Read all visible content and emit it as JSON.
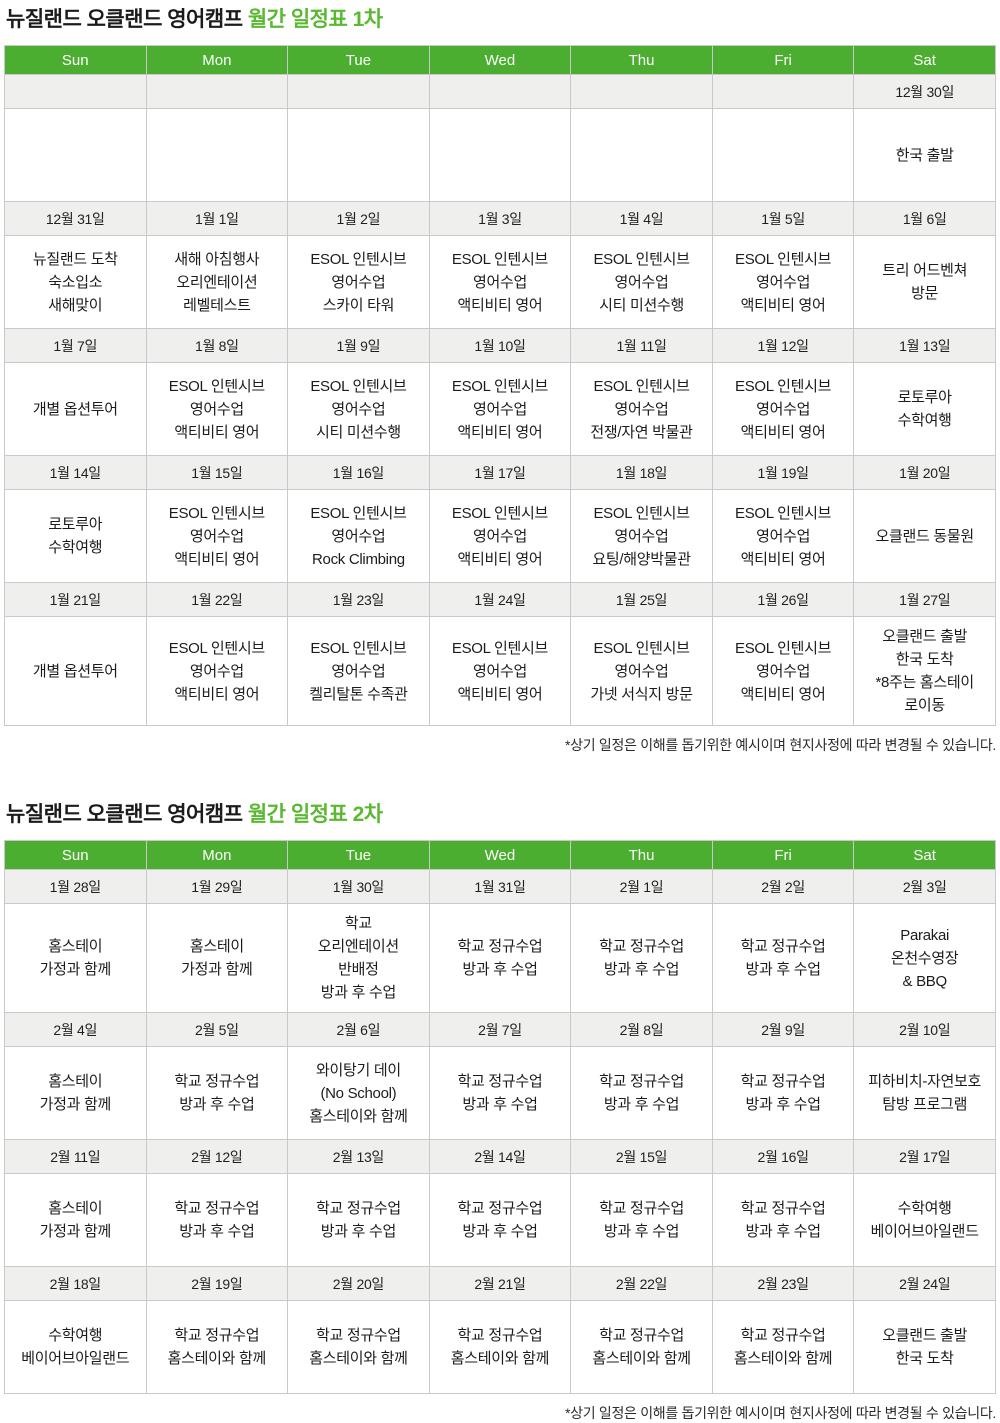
{
  "colors": {
    "header_green": "#4cae30",
    "title_highlight_green": "#5bb832",
    "date_row_bg": "#efefed",
    "border_gray": "#c9c9c9",
    "text_dark": "#1c1c1c"
  },
  "tables": [
    {
      "title_prefix": "뉴질랜드 오클랜드 영어캠프 ",
      "title_highlight": "월간 일정표 1차",
      "days": [
        "Sun",
        "Mon",
        "Tue",
        "Wed",
        "Thu",
        "Fri",
        "Sat"
      ],
      "rows": [
        {
          "type": "date",
          "cells": [
            "",
            "",
            "",
            "",
            "",
            "",
            "12월 30일"
          ]
        },
        {
          "type": "event",
          "cells": [
            "",
            "",
            "",
            "",
            "",
            "",
            "한국 출발"
          ]
        },
        {
          "type": "date",
          "cells": [
            "12월 31일",
            "1월 1일",
            "1월 2일",
            "1월 3일",
            "1월 4일",
            "1월 5일",
            "1월 6일"
          ]
        },
        {
          "type": "event",
          "cells": [
            "뉴질랜드 도착\n숙소입소\n새해맞이",
            "새해 아침행사\n오리엔테이션\n레벨테스트",
            "ESOL 인텐시브\n영어수업\n스카이 타워",
            "ESOL 인텐시브\n영어수업\n액티비티 영어",
            "ESOL 인텐시브\n영어수업\n시티 미션수행",
            "ESOL 인텐시브\n영어수업\n액티비티 영어",
            "트리 어드벤쳐\n방문"
          ]
        },
        {
          "type": "date",
          "cells": [
            "1월 7일",
            "1월 8일",
            "1월 9일",
            "1월 10일",
            "1월 11일",
            "1월 12일",
            "1월 13일"
          ]
        },
        {
          "type": "event",
          "cells": [
            "개별 옵션투어",
            "ESOL 인텐시브\n영어수업\n액티비티 영어",
            "ESOL 인텐시브\n영어수업\n시티 미션수행",
            "ESOL 인텐시브\n영어수업\n액티비티 영어",
            "ESOL 인텐시브\n영어수업\n전쟁/자연 박물관",
            "ESOL 인텐시브\n영어수업\n액티비티 영어",
            "로토루아\n수학여행"
          ]
        },
        {
          "type": "date",
          "cells": [
            "1월 14일",
            "1월 15일",
            "1월 16일",
            "1월 17일",
            "1월 18일",
            "1월 19일",
            "1월 20일"
          ]
        },
        {
          "type": "event",
          "cells": [
            "로토루아\n수학여행",
            "ESOL 인텐시브\n영어수업\n액티비티 영어",
            "ESOL 인텐시브\n영어수업\nRock Climbing",
            "ESOL 인텐시브\n영어수업\n액티비티 영어",
            "ESOL 인텐시브\n영어수업\n요팅/해양박물관",
            "ESOL 인텐시브\n영어수업\n액티비티 영어",
            "오클랜드 동물원"
          ]
        },
        {
          "type": "date",
          "cells": [
            "1월 21일",
            "1월 22일",
            "1월 23일",
            "1월 24일",
            "1월 25일",
            "1월 26일",
            "1월 27일"
          ]
        },
        {
          "type": "event",
          "cells": [
            "개별 옵션투어",
            "ESOL 인텐시브\n영어수업\n액티비티 영어",
            "ESOL 인텐시브\n영어수업\n켈리탈톤 수족관",
            "ESOL 인텐시브\n영어수업\n액티비티 영어",
            "ESOL 인텐시브\n영어수업\n가넷 서식지 방문",
            "ESOL 인텐시브\n영어수업\n액티비티 영어",
            "오클랜드 출발\n한국 도착\n*8주는 홈스테이\n로이동"
          ]
        }
      ],
      "footnote": "*상기 일정은 이해를 돕기위한 예시이며 현지사정에 따라 변경될 수 있습니다."
    },
    {
      "title_prefix": "뉴질랜드 오클랜드 영어캠프 ",
      "title_highlight": "월간 일정표 2차",
      "days": [
        "Sun",
        "Mon",
        "Tue",
        "Wed",
        "Thu",
        "Fri",
        "Sat"
      ],
      "rows": [
        {
          "type": "date",
          "cells": [
            "1월 28일",
            "1월 29일",
            "1월 30일",
            "1월 31일",
            "2월 1일",
            "2월 2일",
            "2월 3일"
          ]
        },
        {
          "type": "event",
          "cells": [
            "홈스테이\n가정과 함께",
            "홈스테이\n가정과 함께",
            "학교\n오리엔테이션\n반배정\n방과 후 수업",
            "학교 정규수업\n방과 후 수업",
            "학교 정규수업\n방과 후 수업",
            "학교 정규수업\n방과 후 수업",
            "Parakai\n온천수영장\n& BBQ"
          ]
        },
        {
          "type": "date",
          "cells": [
            "2월 4일",
            "2월 5일",
            "2월 6일",
            "2월 7일",
            "2월 8일",
            "2월 9일",
            "2월 10일"
          ]
        },
        {
          "type": "event",
          "cells": [
            "홈스테이\n가정과 함께",
            "학교 정규수업\n방과 후 수업",
            "와이탕기 데이\n(No School)\n홈스테이와 함께",
            "학교 정규수업\n방과 후 수업",
            "학교 정규수업\n방과 후 수업",
            "학교 정규수업\n방과 후 수업",
            "피하비치-자연보호\n탐방 프로그램"
          ]
        },
        {
          "type": "date",
          "cells": [
            "2월 11일",
            "2월 12일",
            "2월 13일",
            "2월 14일",
            "2월 15일",
            "2월 16일",
            "2월 17일"
          ]
        },
        {
          "type": "event",
          "cells": [
            "홈스테이\n가정과 함께",
            "학교 정규수업\n방과 후 수업",
            "학교 정규수업\n방과 후 수업",
            "학교 정규수업\n방과 후 수업",
            "학교 정규수업\n방과 후 수업",
            "학교 정규수업\n방과 후 수업",
            "수학여행\n베이어브아일랜드"
          ]
        },
        {
          "type": "date",
          "cells": [
            "2월 18일",
            "2월 19일",
            "2월 20일",
            "2월 21일",
            "2월 22일",
            "2월 23일",
            "2월 24일"
          ]
        },
        {
          "type": "event",
          "cells": [
            "수학여행\n베이어브아일랜드",
            "학교 정규수업\n홈스테이와 함께",
            "학교 정규수업\n홈스테이와 함께",
            "학교 정규수업\n홈스테이와 함께",
            "학교 정규수업\n홈스테이와 함께",
            "학교 정규수업\n홈스테이와 함께",
            "오클랜드 출발\n한국 도착"
          ]
        }
      ],
      "footnote": "*상기 일정은 이해를 돕기위한 예시이며 현지사정에 따라 변경될 수 있습니다."
    }
  ]
}
